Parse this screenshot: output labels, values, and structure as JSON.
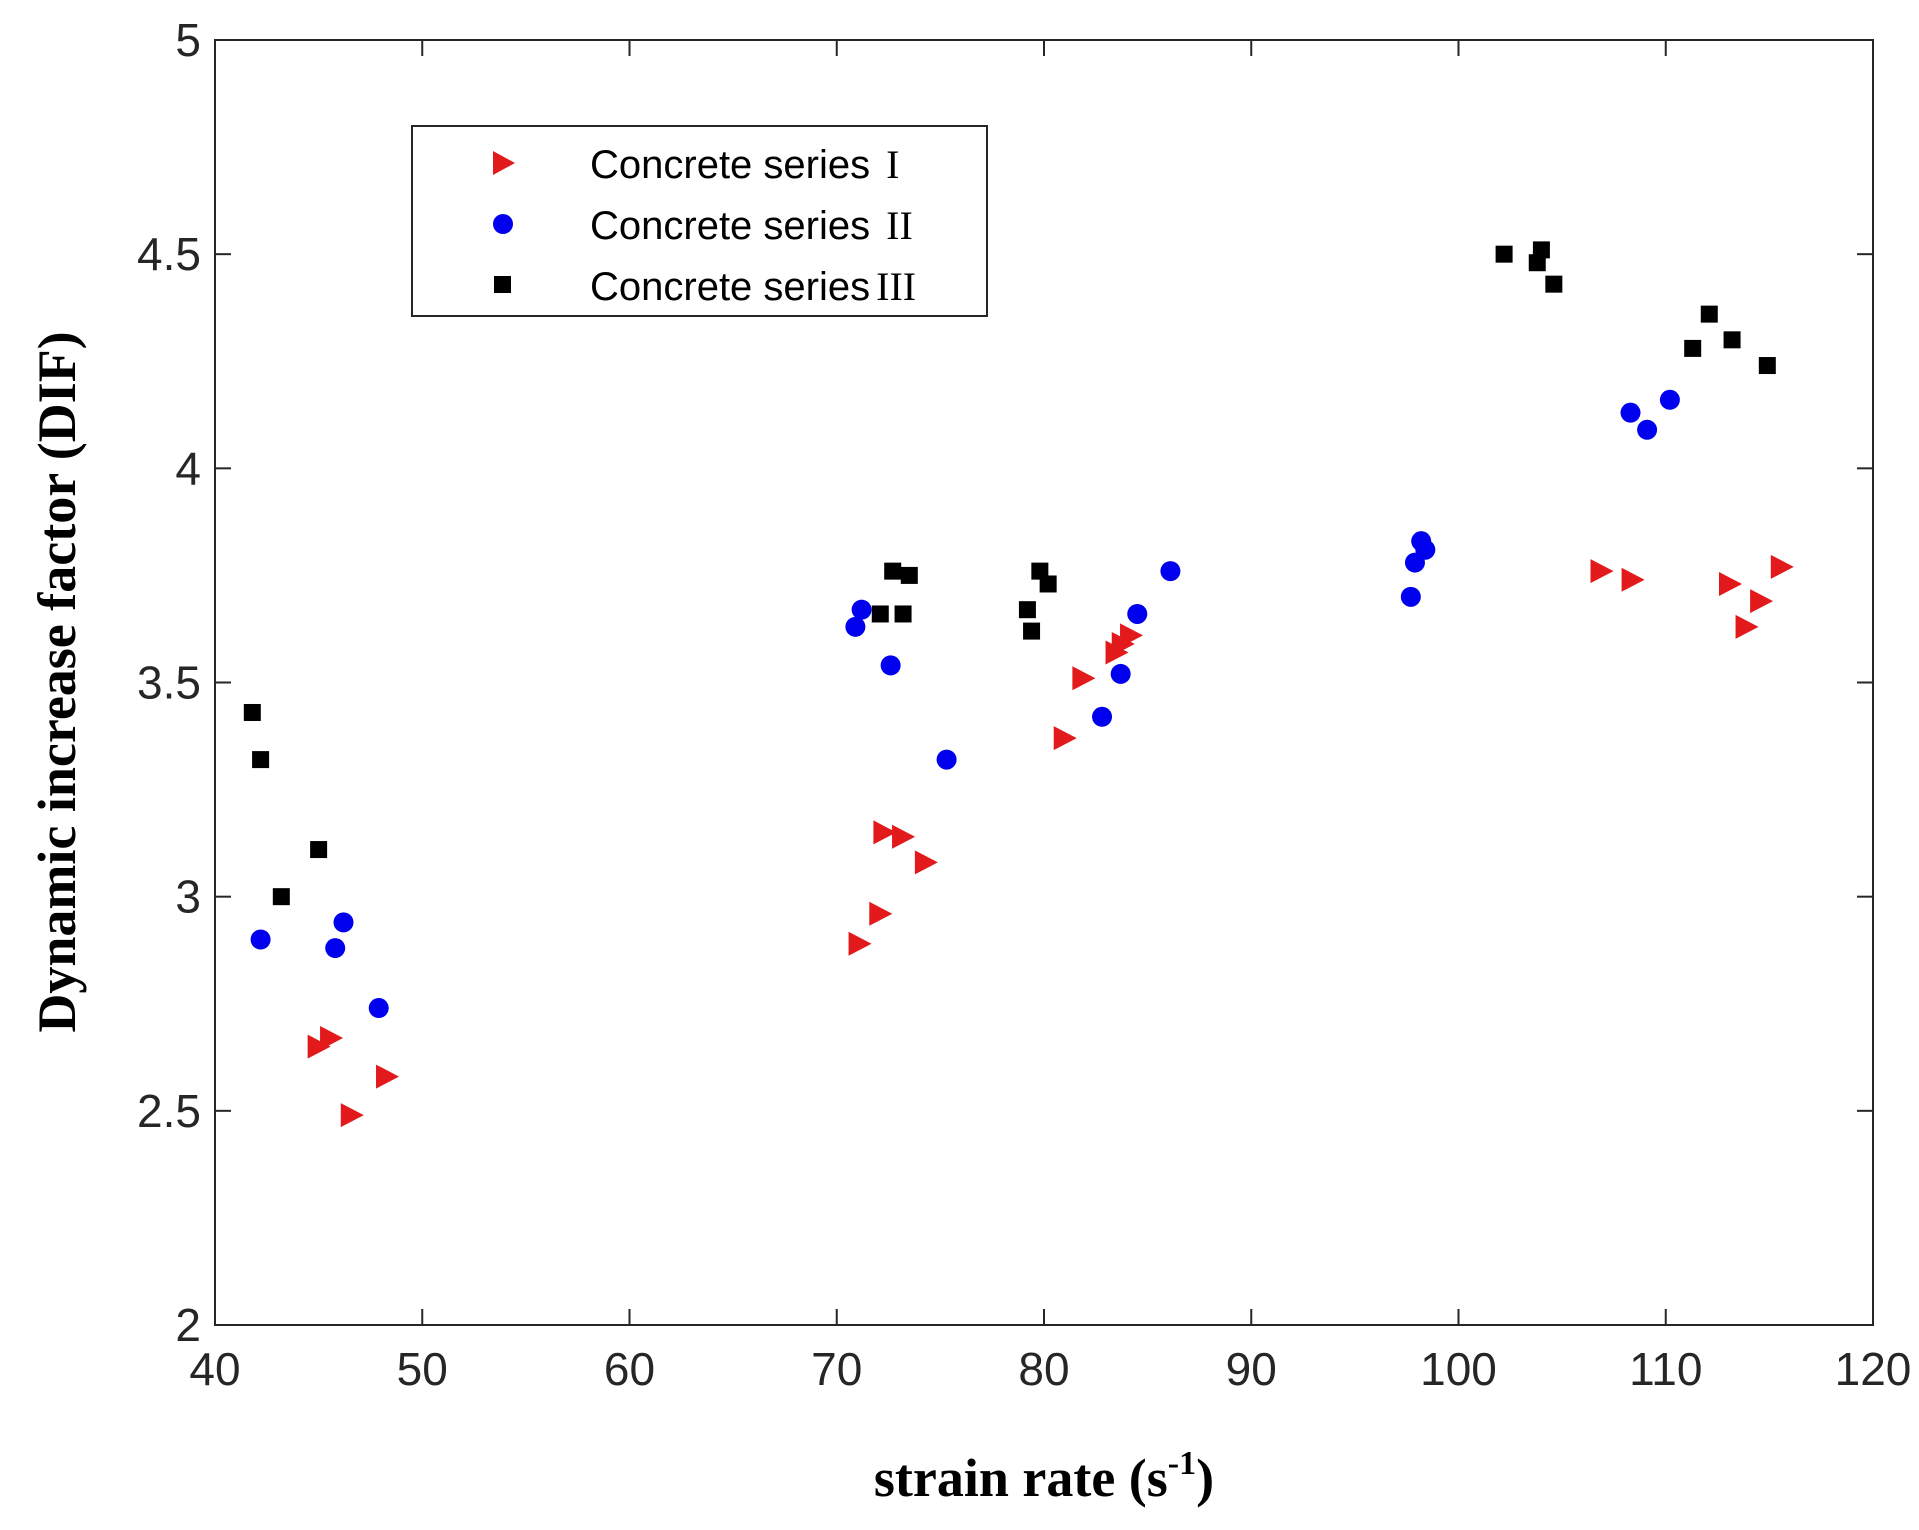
{
  "chart_data": {
    "type": "scatter",
    "title": "",
    "xlabel": "strain rate (s",
    "xlabel_sup": "-1",
    "xlabel_close": ")",
    "ylabel": "Dynamic increase factor (DIF)",
    "xlim": [
      40,
      120
    ],
    "ylim": [
      2,
      5
    ],
    "x_ticks": [
      40,
      50,
      60,
      70,
      80,
      90,
      100,
      110,
      120
    ],
    "y_ticks": [
      2,
      2.5,
      3,
      3.5,
      4,
      4.5,
      5
    ],
    "grid": false,
    "legend_position": "top-left",
    "series": [
      {
        "name": "Concrete series",
        "numeral": "I",
        "marker": "triangle-right",
        "color": "#e31a1c",
        "points": [
          [
            45.0,
            2.65
          ],
          [
            45.6,
            2.67
          ],
          [
            46.6,
            2.49
          ],
          [
            48.3,
            2.58
          ],
          [
            71.1,
            2.89
          ],
          [
            72.1,
            2.96
          ],
          [
            72.3,
            3.15
          ],
          [
            73.2,
            3.14
          ],
          [
            74.3,
            3.08
          ],
          [
            81.0,
            3.37
          ],
          [
            81.9,
            3.51
          ],
          [
            83.5,
            3.57
          ],
          [
            83.8,
            3.59
          ],
          [
            84.2,
            3.61
          ],
          [
            106.9,
            3.76
          ],
          [
            108.4,
            3.74
          ],
          [
            113.1,
            3.73
          ],
          [
            113.9,
            3.63
          ],
          [
            114.6,
            3.69
          ],
          [
            115.6,
            3.77
          ]
        ]
      },
      {
        "name": "Concrete series",
        "numeral": "II",
        "marker": "circle",
        "color": "#0000ee",
        "points": [
          [
            42.2,
            2.9
          ],
          [
            45.8,
            2.88
          ],
          [
            46.2,
            2.94
          ],
          [
            47.9,
            2.74
          ],
          [
            70.9,
            3.63
          ],
          [
            71.2,
            3.67
          ],
          [
            72.6,
            3.54
          ],
          [
            75.3,
            3.32
          ],
          [
            82.8,
            3.42
          ],
          [
            83.7,
            3.52
          ],
          [
            84.5,
            3.66
          ],
          [
            86.1,
            3.76
          ],
          [
            97.7,
            3.7
          ],
          [
            97.9,
            3.78
          ],
          [
            98.2,
            3.83
          ],
          [
            98.4,
            3.81
          ],
          [
            108.3,
            4.13
          ],
          [
            109.1,
            4.09
          ],
          [
            110.2,
            4.16
          ]
        ]
      },
      {
        "name": "Concrete series",
        "numeral": "III",
        "marker": "square",
        "color": "#000000",
        "points": [
          [
            41.8,
            3.43
          ],
          [
            42.2,
            3.32
          ],
          [
            43.2,
            3.0
          ],
          [
            45.0,
            3.11
          ],
          [
            72.1,
            3.66
          ],
          [
            72.7,
            3.76
          ],
          [
            73.2,
            3.66
          ],
          [
            73.5,
            3.75
          ],
          [
            79.2,
            3.67
          ],
          [
            79.4,
            3.62
          ],
          [
            79.8,
            3.76
          ],
          [
            80.2,
            3.73
          ],
          [
            102.2,
            4.5
          ],
          [
            103.8,
            4.48
          ],
          [
            104.0,
            4.51
          ],
          [
            104.6,
            4.43
          ],
          [
            111.3,
            4.28
          ],
          [
            112.1,
            4.36
          ],
          [
            113.2,
            4.3
          ],
          [
            114.9,
            4.24
          ]
        ]
      }
    ]
  }
}
